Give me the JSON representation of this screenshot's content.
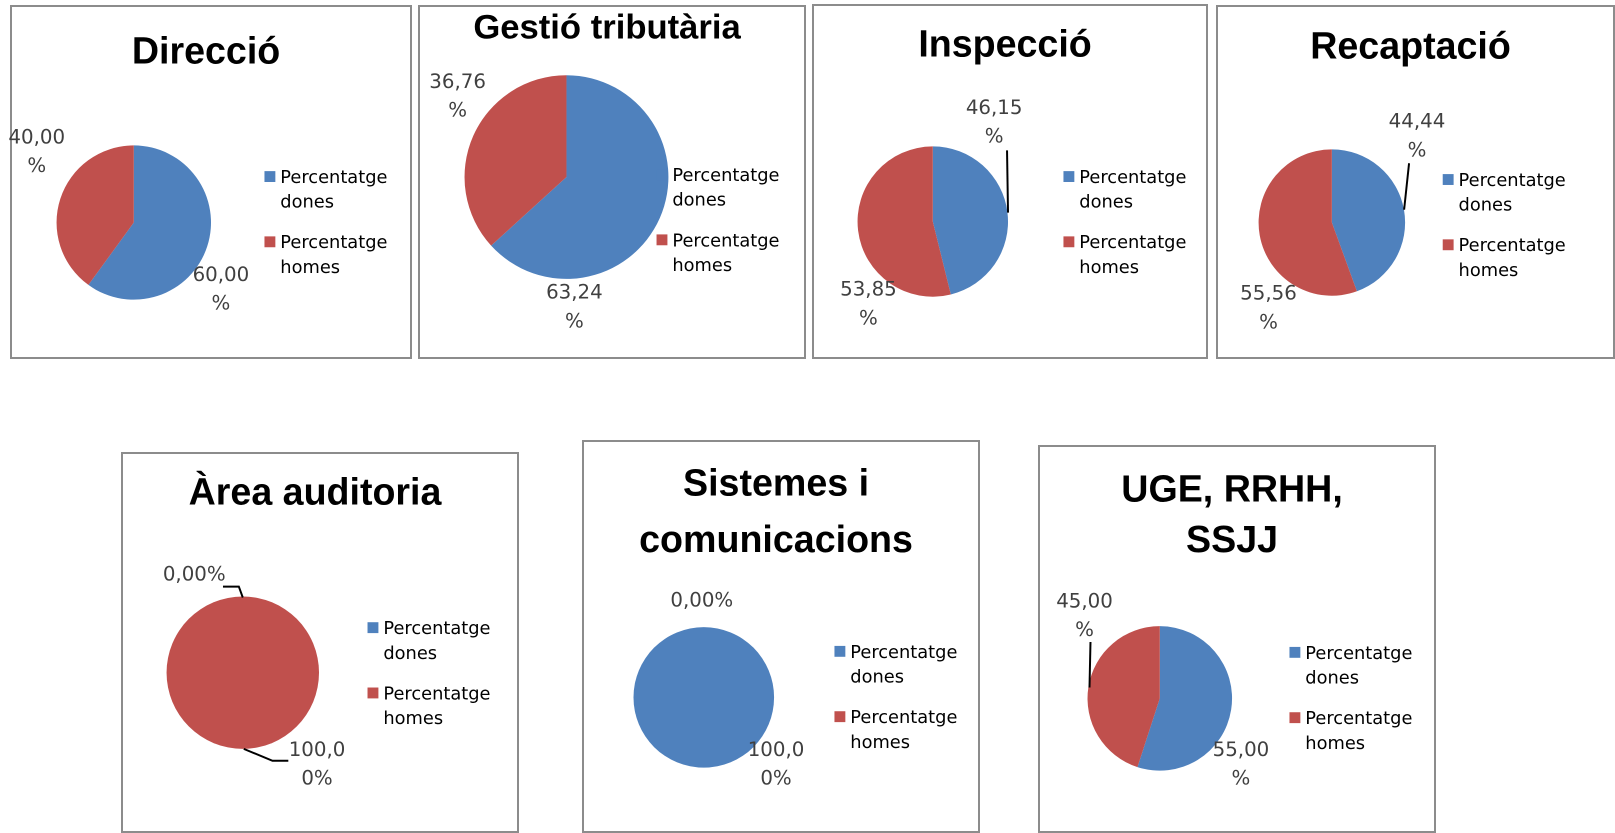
{
  "colors": {
    "dones": "#4f81bd",
    "homes": "#c0504d"
  },
  "chart_data": [
    {
      "type": "pie",
      "title": [
        "Direcció"
      ],
      "categories": [
        "Percentatge dones",
        "Percentatge homes"
      ],
      "values": [
        60.0,
        40.0
      ],
      "labels": [
        [
          "60,00",
          "%"
        ],
        [
          "40,00",
          "%"
        ]
      ],
      "legend": [
        "Percentatge",
        "dones",
        "Percentatge",
        "homes"
      ]
    },
    {
      "type": "pie",
      "title": [
        "Gestió tributària"
      ],
      "categories": [
        "Percentatge dones",
        "Percentatge homes"
      ],
      "values": [
        63.24,
        36.76
      ],
      "labels": [
        [
          "63,24",
          "%"
        ],
        [
          "36,76",
          "%"
        ]
      ],
      "legend": [
        "Percentatge",
        "dones",
        "Percentatge",
        "homes"
      ]
    },
    {
      "type": "pie",
      "title": [
        "Inspecció"
      ],
      "categories": [
        "Percentatge dones",
        "Percentatge homes"
      ],
      "values": [
        46.15,
        53.85
      ],
      "labels": [
        [
          "46,15",
          "%"
        ],
        [
          "53,85",
          "%"
        ]
      ],
      "legend": [
        "Percentatge",
        "dones",
        "Percentatge",
        "homes"
      ]
    },
    {
      "type": "pie",
      "title": [
        "Recaptació"
      ],
      "categories": [
        "Percentatge dones",
        "Percentatge homes"
      ],
      "values": [
        44.44,
        55.56
      ],
      "labels": [
        [
          "44,44",
          "%"
        ],
        [
          "55,56",
          "%"
        ]
      ],
      "legend": [
        "Percentatge",
        "dones",
        "Percentatge",
        "homes"
      ]
    },
    {
      "type": "pie",
      "title": [
        "Àrea auditoria"
      ],
      "categories": [
        "Percentatge dones",
        "Percentatge homes"
      ],
      "values": [
        0.0,
        100.0
      ],
      "labels": [
        [
          "0,00%"
        ],
        [
          "100,0",
          "0%"
        ]
      ],
      "legend": [
        "Percentatge",
        "dones",
        "Percentatge",
        "homes"
      ]
    },
    {
      "type": "pie",
      "title": [
        "Sistemes i",
        "comunicacions"
      ],
      "categories": [
        "Percentatge dones",
        "Percentatge homes"
      ],
      "values": [
        100.0,
        0.0
      ],
      "labels": [
        [
          "100,0",
          "0%"
        ],
        [
          "0,00%"
        ]
      ],
      "legend": [
        "Percentatge",
        "dones",
        "Percentatge",
        "homes"
      ]
    },
    {
      "type": "pie",
      "title": [
        "UGE, RRHH,",
        "SSJJ"
      ],
      "categories": [
        "Percentatge dones",
        "Percentatge homes"
      ],
      "values": [
        55.0,
        45.0
      ],
      "labels": [
        [
          "55,00",
          "%"
        ],
        [
          "45,00",
          "%"
        ]
      ],
      "legend": [
        "Percentatge",
        "dones",
        "Percentatge",
        "homes"
      ]
    }
  ]
}
